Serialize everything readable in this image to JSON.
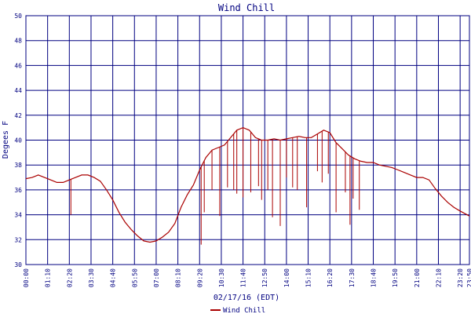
{
  "chart_data": {
    "type": "line",
    "title": "Wind Chill",
    "xlabel": "02/17/16 (EDT)",
    "ylabel": "Degees F",
    "ylim": [
      30,
      50
    ],
    "yticks": [
      30,
      32,
      34,
      36,
      38,
      40,
      42,
      44,
      46,
      48,
      50
    ],
    "xlim": [
      "00:00",
      "23:50"
    ],
    "xticks": [
      "00:00",
      "01:10",
      "02:20",
      "03:30",
      "04:40",
      "05:50",
      "07:00",
      "08:10",
      "09:20",
      "10:30",
      "11:40",
      "12:50",
      "14:00",
      "15:10",
      "16:20",
      "17:30",
      "18:40",
      "19:50",
      "21:00",
      "22:10",
      "23:20",
      "23:50"
    ],
    "grid": true,
    "legend_position": "bottom",
    "colors": {
      "series": "#aa0000",
      "axis": "#000080",
      "grid": "#000080",
      "text": "#000080"
    },
    "series": [
      {
        "name": "Wind Chill",
        "points": [
          [
            "00:00",
            36.9
          ],
          [
            "00:20",
            37.0
          ],
          [
            "00:40",
            37.2
          ],
          [
            "01:00",
            37.0
          ],
          [
            "01:20",
            36.8
          ],
          [
            "01:40",
            36.6
          ],
          [
            "02:00",
            36.6
          ],
          [
            "02:20",
            36.8
          ],
          [
            "02:40",
            37.0
          ],
          [
            "03:00",
            37.2
          ],
          [
            "03:20",
            37.2
          ],
          [
            "03:40",
            37.0
          ],
          [
            "04:00",
            36.7
          ],
          [
            "04:20",
            36.0
          ],
          [
            "04:40",
            35.2
          ],
          [
            "05:00",
            34.2
          ],
          [
            "05:20",
            33.4
          ],
          [
            "05:40",
            32.8
          ],
          [
            "06:00",
            32.3
          ],
          [
            "06:20",
            31.9
          ],
          [
            "06:40",
            31.8
          ],
          [
            "07:00",
            31.9
          ],
          [
            "07:20",
            32.2
          ],
          [
            "07:40",
            32.6
          ],
          [
            "08:00",
            33.3
          ],
          [
            "08:20",
            34.6
          ],
          [
            "08:40",
            35.6
          ],
          [
            "09:00",
            36.4
          ],
          [
            "09:20",
            37.6
          ],
          [
            "09:40",
            38.6
          ],
          [
            "10:00",
            39.2
          ],
          [
            "10:20",
            39.4
          ],
          [
            "10:40",
            39.6
          ],
          [
            "11:00",
            40.2
          ],
          [
            "11:20",
            40.8
          ],
          [
            "11:40",
            41.0
          ],
          [
            "12:00",
            40.8
          ],
          [
            "12:20",
            40.2
          ],
          [
            "12:40",
            40.0
          ],
          [
            "13:00",
            40.0
          ],
          [
            "13:20",
            40.1
          ],
          [
            "13:40",
            40.0
          ],
          [
            "14:00",
            40.1
          ],
          [
            "14:20",
            40.2
          ],
          [
            "14:40",
            40.3
          ],
          [
            "15:00",
            40.2
          ],
          [
            "15:20",
            40.2
          ],
          [
            "15:40",
            40.5
          ],
          [
            "16:00",
            40.8
          ],
          [
            "16:20",
            40.6
          ],
          [
            "16:40",
            39.8
          ],
          [
            "17:00",
            39.3
          ],
          [
            "17:20",
            38.8
          ],
          [
            "17:40",
            38.5
          ],
          [
            "18:00",
            38.3
          ],
          [
            "18:20",
            38.2
          ],
          [
            "18:40",
            38.2
          ],
          [
            "19:00",
            38.0
          ],
          [
            "19:20",
            37.9
          ],
          [
            "19:40",
            37.8
          ],
          [
            "20:00",
            37.6
          ],
          [
            "20:20",
            37.4
          ],
          [
            "20:40",
            37.2
          ],
          [
            "21:00",
            37.0
          ],
          [
            "21:20",
            37.0
          ],
          [
            "21:40",
            36.8
          ],
          [
            "22:00",
            36.1
          ],
          [
            "22:20",
            35.5
          ],
          [
            "22:40",
            35.0
          ],
          [
            "23:00",
            34.6
          ],
          [
            "23:20",
            34.3
          ],
          [
            "23:50",
            33.9
          ]
        ],
        "dips": [
          [
            "02:25",
            34.0
          ],
          [
            "09:25",
            31.6
          ],
          [
            "09:35",
            34.2
          ],
          [
            "10:00",
            36.0
          ],
          [
            "10:25",
            33.9
          ],
          [
            "10:50",
            36.2
          ],
          [
            "11:10",
            36.0
          ],
          [
            "11:20",
            35.7
          ],
          [
            "11:40",
            35.4
          ],
          [
            "12:05",
            35.8
          ],
          [
            "12:30",
            36.3
          ],
          [
            "12:40",
            35.2
          ],
          [
            "13:00",
            36.0
          ],
          [
            "13:15",
            33.8
          ],
          [
            "13:40",
            33.1
          ],
          [
            "14:00",
            37.0
          ],
          [
            "14:20",
            36.2
          ],
          [
            "14:35",
            36.0
          ],
          [
            "15:05",
            34.6
          ],
          [
            "15:40",
            37.5
          ],
          [
            "15:55",
            36.6
          ],
          [
            "16:15",
            37.3
          ],
          [
            "16:40",
            34.2
          ],
          [
            "17:10",
            35.8
          ],
          [
            "17:25",
            33.2
          ],
          [
            "17:35",
            35.3
          ],
          [
            "17:55",
            34.4
          ]
        ]
      }
    ]
  }
}
